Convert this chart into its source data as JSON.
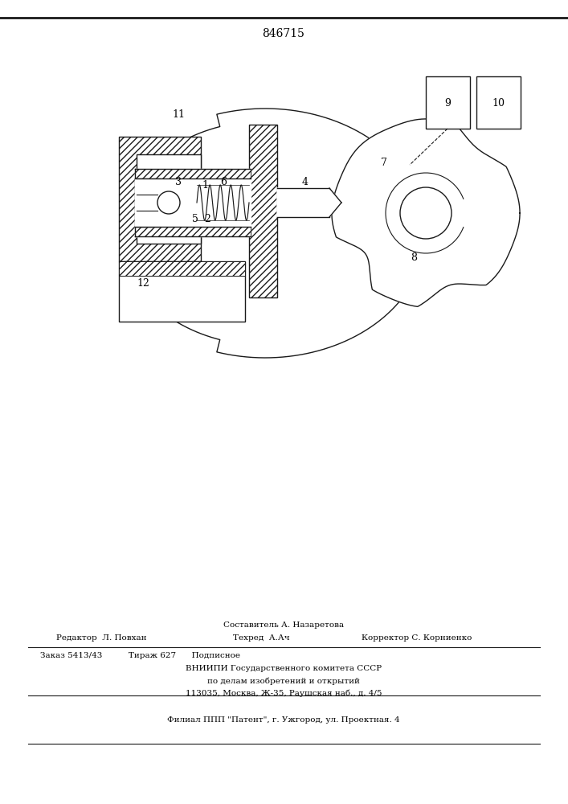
{
  "title": "846715",
  "title_fontsize": 10,
  "line_color": "#1a1a1a",
  "footer": {
    "line1_above": "Составитель А. Назаретова",
    "col1": "Редактор  Л. Повхан",
    "col2": "Техред  А.Ач",
    "col3": "Корректор С. Корниенко",
    "row2": "Заказ 5413/43          Тираж 627      Подписное",
    "row3": "ВНИИПИ Государственного комитета СССР",
    "row4": "по делам изобретений и открытий",
    "row5": "113035, Москва, Ж-35, Раушская наб., д. 4/5",
    "row6": "Филиал ППП \"Патент\", г. Ужгород, ул. Проектная. 4"
  }
}
